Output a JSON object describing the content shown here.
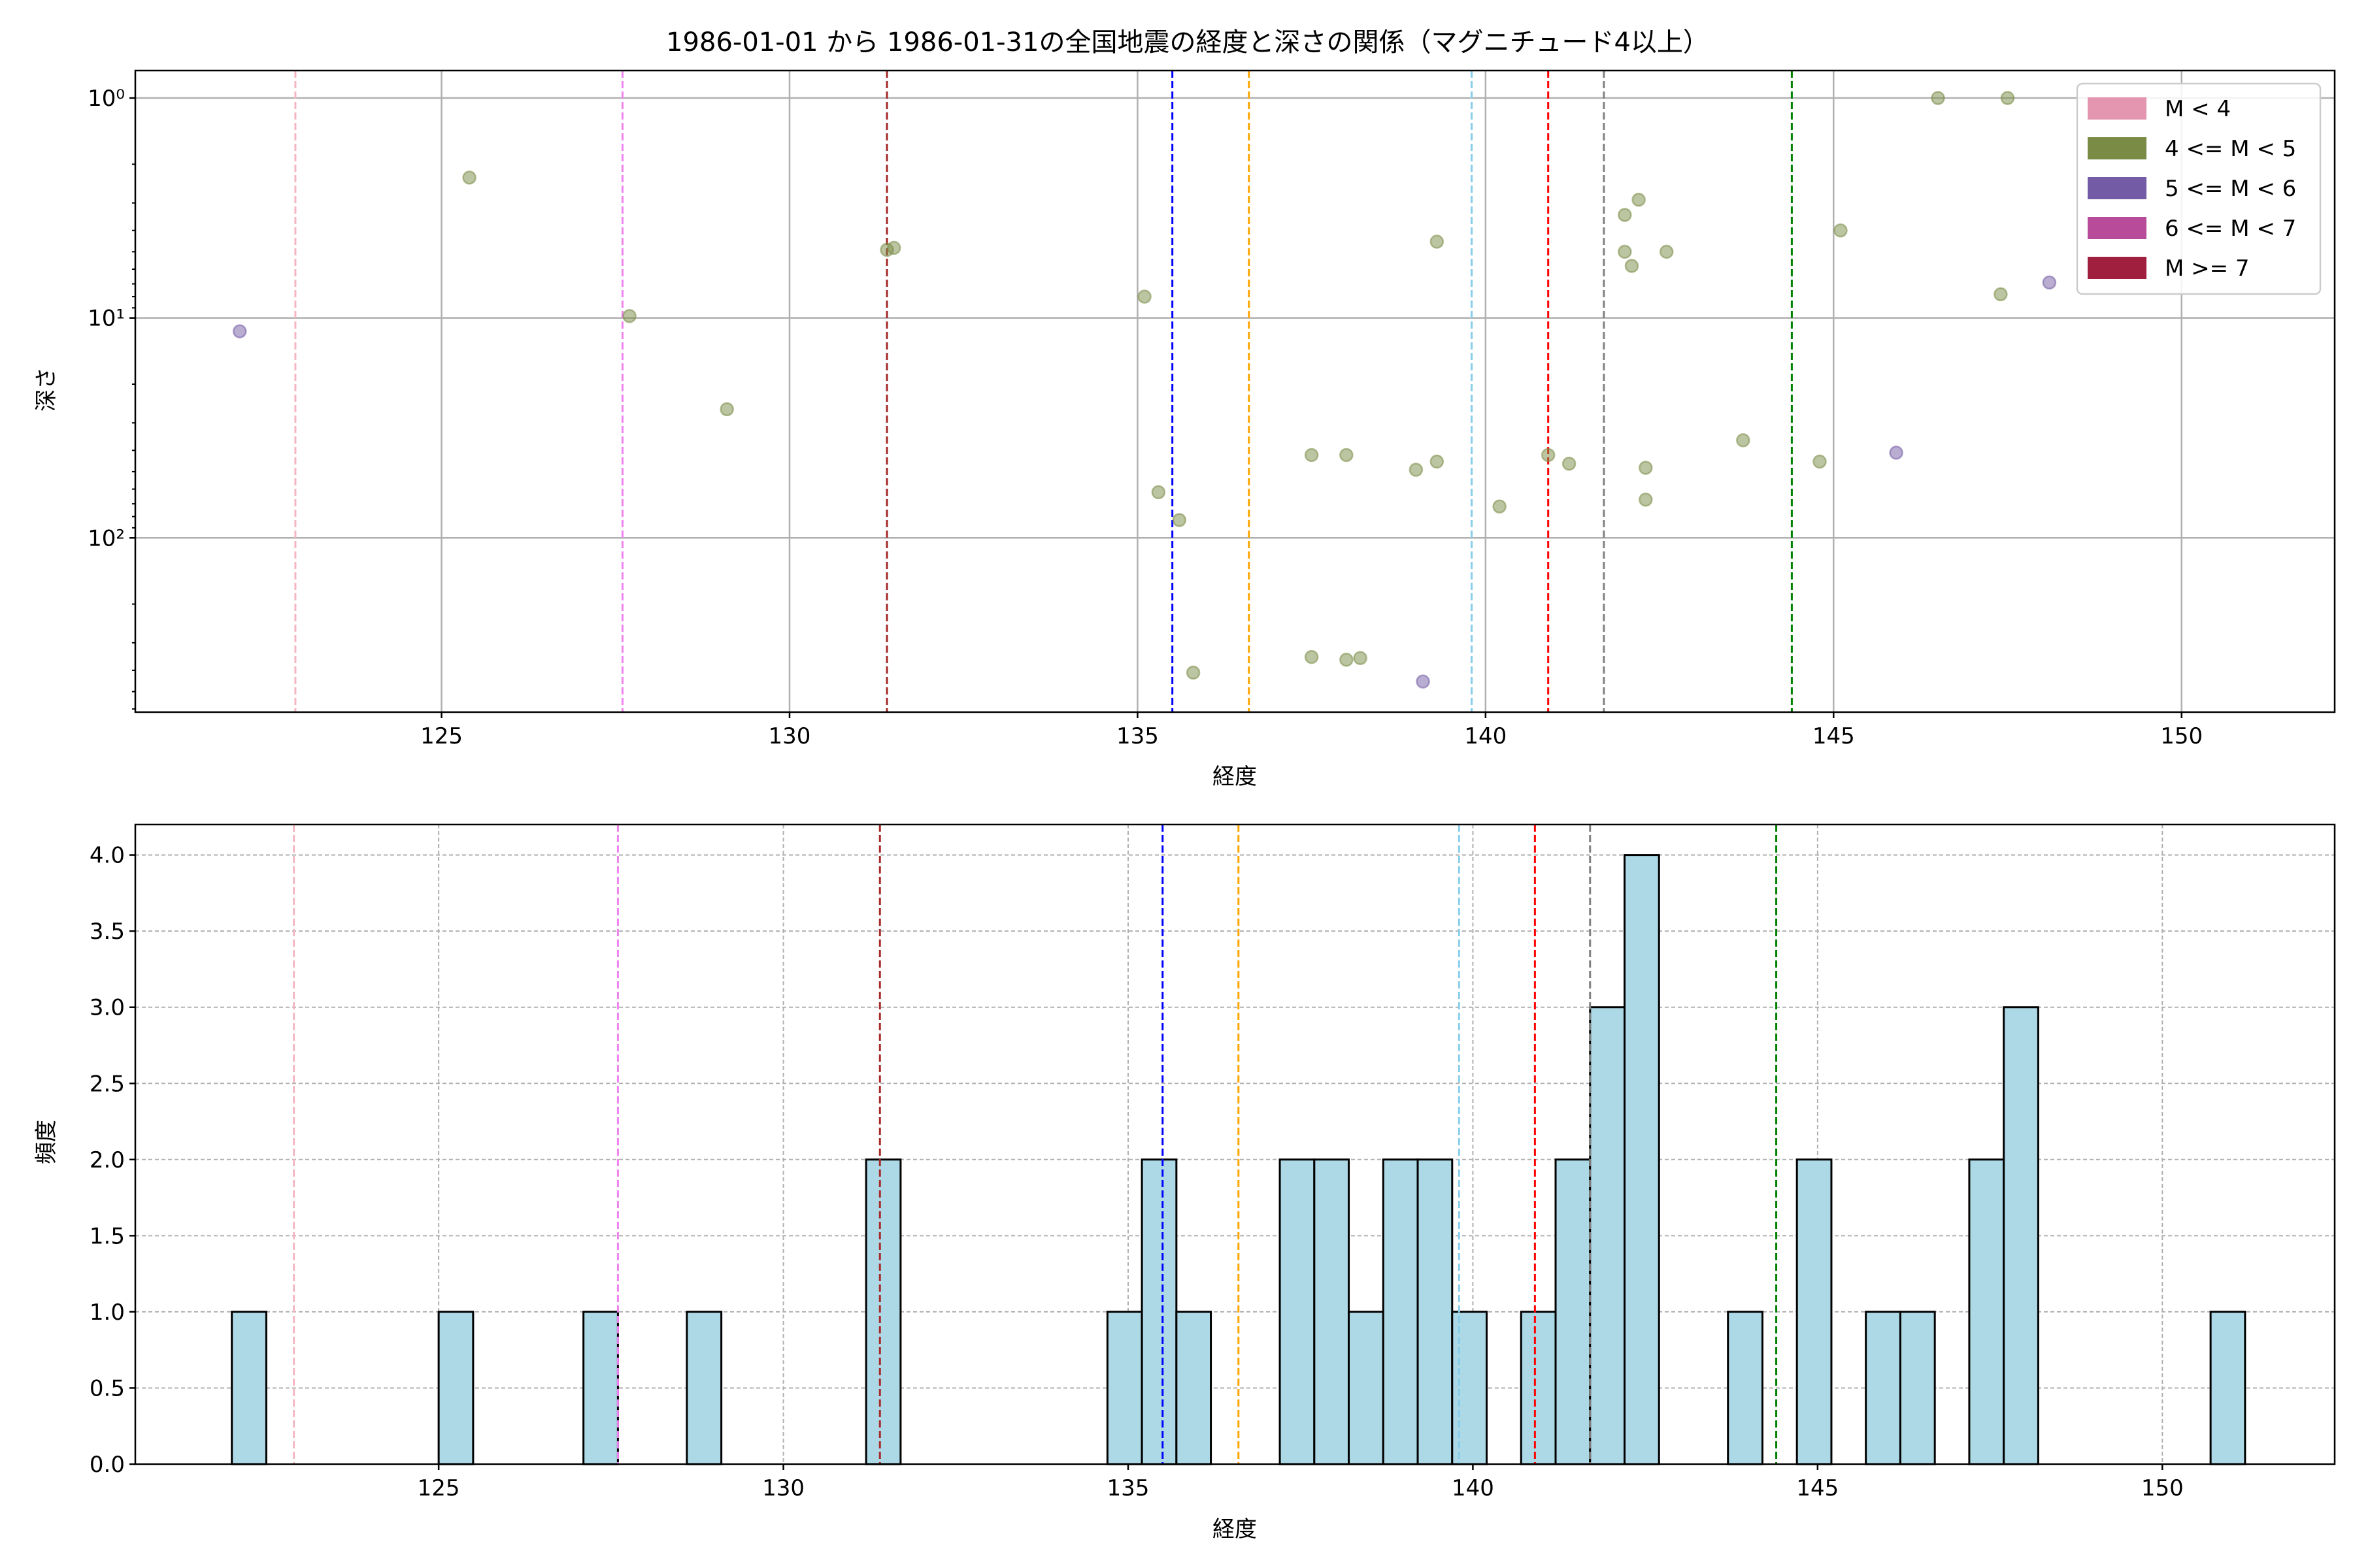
{
  "chart_data": [
    {
      "type": "scatter",
      "title": "1986-01-01 から 1986-01-31の全国地震の経度と深さの関係（マグニチュード4以上）",
      "xlabel": "経度",
      "ylabel": "深さ",
      "xlim": [
        120.6,
        152.2
      ],
      "ylim": [
        620,
        0.75
      ],
      "y_scale": "log",
      "y_inverted": true,
      "grid": true,
      "xticks": [
        125,
        130,
        135,
        140,
        145,
        150
      ],
      "yticks": [
        {
          "value": 1,
          "label": "10⁰"
        },
        {
          "value": 10,
          "label": "10¹"
        },
        {
          "value": 100,
          "label": "10²"
        }
      ],
      "legend_position": "top-right",
      "legend": [
        {
          "label": "M < 4",
          "color": "#e496b0"
        },
        {
          "label": "4 <= M < 5",
          "color": "#7a8b45"
        },
        {
          "label": "5 <= M < 6",
          "color": "#735ba6"
        },
        {
          "label": "6 <= M < 7",
          "color": "#b84c9a"
        },
        {
          "label": "M >= 7",
          "color": "#a01e3e"
        }
      ],
      "vlines": [
        {
          "x": 122.9,
          "color": "#f4b6c2"
        },
        {
          "x": 127.6,
          "color": "#ee82ee"
        },
        {
          "x": 131.4,
          "color": "#a52a2a"
        },
        {
          "x": 135.5,
          "color": "#0000ff"
        },
        {
          "x": 136.6,
          "color": "#ffa500"
        },
        {
          "x": 139.8,
          "color": "#87ceeb"
        },
        {
          "x": 140.9,
          "color": "#ff0000"
        },
        {
          "x": 141.7,
          "color": "#808080"
        },
        {
          "x": 144.4,
          "color": "#008000"
        }
      ],
      "series": [
        {
          "name": "4 <= M < 5",
          "color": "#7a8b45",
          "points": [
            {
              "x": 125.4,
              "y": 2.3
            },
            {
              "x": 127.7,
              "y": 9.8
            },
            {
              "x": 129.1,
              "y": 26
            },
            {
              "x": 131.4,
              "y": 4.9
            },
            {
              "x": 131.5,
              "y": 4.8
            },
            {
              "x": 135.1,
              "y": 8
            },
            {
              "x": 135.3,
              "y": 62
            },
            {
              "x": 135.6,
              "y": 83
            },
            {
              "x": 135.8,
              "y": 410
            },
            {
              "x": 137.5,
              "y": 42
            },
            {
              "x": 137.5,
              "y": 348
            },
            {
              "x": 138.0,
              "y": 42
            },
            {
              "x": 138.0,
              "y": 358
            },
            {
              "x": 138.2,
              "y": 352
            },
            {
              "x": 139.0,
              "y": 49
            },
            {
              "x": 139.3,
              "y": 4.5
            },
            {
              "x": 139.3,
              "y": 45
            },
            {
              "x": 140.2,
              "y": 72
            },
            {
              "x": 140.9,
              "y": 42
            },
            {
              "x": 141.2,
              "y": 46
            },
            {
              "x": 142.0,
              "y": 3.4
            },
            {
              "x": 142.0,
              "y": 5
            },
            {
              "x": 142.1,
              "y": 5.8
            },
            {
              "x": 142.2,
              "y": 2.9
            },
            {
              "x": 142.3,
              "y": 48
            },
            {
              "x": 142.3,
              "y": 67
            },
            {
              "x": 142.6,
              "y": 5
            },
            {
              "x": 143.7,
              "y": 36
            },
            {
              "x": 144.8,
              "y": 45
            },
            {
              "x": 145.1,
              "y": 4
            },
            {
              "x": 146.5,
              "y": 1
            },
            {
              "x": 147.4,
              "y": 7.8
            },
            {
              "x": 147.5,
              "y": 1
            }
          ]
        },
        {
          "name": "5 <= M < 6",
          "color": "#735ba6",
          "points": [
            {
              "x": 122.1,
              "y": 11.5
            },
            {
              "x": 139.1,
              "y": 450
            },
            {
              "x": 145.9,
              "y": 41
            },
            {
              "x": 148.1,
              "y": 6.9
            }
          ]
        }
      ]
    },
    {
      "type": "bar",
      "xlabel": "経度",
      "ylabel": "頻度",
      "xlim": [
        120.6,
        152.5
      ],
      "ylim": [
        0,
        4.2
      ],
      "bin_width": 0.5,
      "grid": true,
      "grid_style": "dashed",
      "xticks": [
        125,
        130,
        135,
        140,
        145,
        150
      ],
      "yticks": [
        {
          "value": 0,
          "label": "0.0"
        },
        {
          "value": 0.5,
          "label": "0.5"
        },
        {
          "value": 1,
          "label": "1.0"
        },
        {
          "value": 1.5,
          "label": "1.5"
        },
        {
          "value": 2,
          "label": "2.0"
        },
        {
          "value": 2.5,
          "label": "2.5"
        },
        {
          "value": 3,
          "label": "3.0"
        },
        {
          "value": 3.5,
          "label": "3.5"
        },
        {
          "value": 4,
          "label": "4.0"
        }
      ],
      "bar_color": "#add8e6",
      "bins": [
        {
          "x0": 122.0,
          "count": 1
        },
        {
          "x0": 125.0,
          "count": 1
        },
        {
          "x0": 127.1,
          "count": 1
        },
        {
          "x0": 128.6,
          "count": 1
        },
        {
          "x0": 131.2,
          "count": 2
        },
        {
          "x0": 134.7,
          "count": 1
        },
        {
          "x0": 135.2,
          "count": 2
        },
        {
          "x0": 135.7,
          "count": 1
        },
        {
          "x0": 137.2,
          "count": 2
        },
        {
          "x0": 137.7,
          "count": 2
        },
        {
          "x0": 138.2,
          "count": 1
        },
        {
          "x0": 138.7,
          "count": 2
        },
        {
          "x0": 139.2,
          "count": 2
        },
        {
          "x0": 139.7,
          "count": 1
        },
        {
          "x0": 140.7,
          "count": 1
        },
        {
          "x0": 141.2,
          "count": 2
        },
        {
          "x0": 141.7,
          "count": 3
        },
        {
          "x0": 142.2,
          "count": 4
        },
        {
          "x0": 143.7,
          "count": 1
        },
        {
          "x0": 144.7,
          "count": 2
        },
        {
          "x0": 145.7,
          "count": 1
        },
        {
          "x0": 146.2,
          "count": 1
        },
        {
          "x0": 147.2,
          "count": 2
        },
        {
          "x0": 147.7,
          "count": 3
        },
        {
          "x0": 150.7,
          "count": 1
        }
      ],
      "vlines": [
        {
          "x": 122.9,
          "color": "#f4b6c2"
        },
        {
          "x": 127.6,
          "color": "#ee82ee"
        },
        {
          "x": 131.4,
          "color": "#a52a2a"
        },
        {
          "x": 135.5,
          "color": "#0000ff"
        },
        {
          "x": 136.6,
          "color": "#ffa500"
        },
        {
          "x": 139.8,
          "color": "#87ceeb"
        },
        {
          "x": 140.9,
          "color": "#ff0000"
        },
        {
          "x": 141.7,
          "color": "#808080"
        },
        {
          "x": 144.4,
          "color": "#008000"
        }
      ]
    }
  ]
}
